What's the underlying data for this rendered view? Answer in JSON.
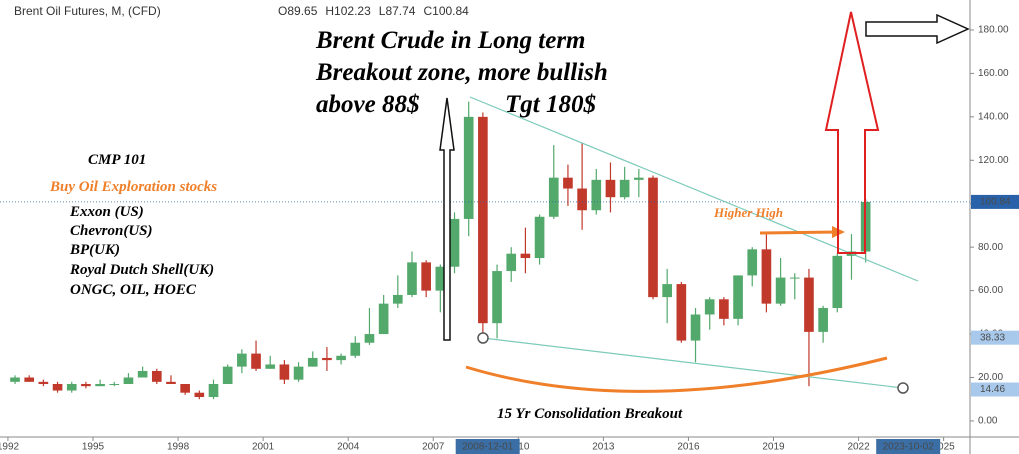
{
  "chart_data": {
    "type": "candlestick",
    "title": "Brent Oil Futures, M, (CFD)",
    "ohlc": [
      {
        "label": "O",
        "value": 89.65
      },
      {
        "label": "H",
        "value": 102.23
      },
      {
        "label": "L",
        "value": 87.74
      },
      {
        "label": "C",
        "value": 100.84
      }
    ],
    "up_color": "#53a86b",
    "down_color": "#c0392b",
    "xlim": [
      1991.72,
      2025.93
    ],
    "xticks": [
      1992,
      1995,
      1998,
      2001,
      2004,
      2007,
      2010,
      2013,
      2016,
      2019,
      2022,
      2025
    ],
    "ylim": [
      -7.4,
      193.8
    ],
    "yticks": [
      {
        "value": 0,
        "label": "0.00"
      },
      {
        "value": 20,
        "label": "20.00"
      },
      {
        "value": 40,
        "label": "40.00"
      },
      {
        "value": 60,
        "label": "60.00"
      },
      {
        "value": 80,
        "label": "80.00"
      },
      {
        "value": 100,
        "label": "100.00"
      },
      {
        "value": 120,
        "label": "120.00"
      },
      {
        "value": 140,
        "label": "140.00"
      },
      {
        "value": 160,
        "label": "160.00"
      },
      {
        "value": 180,
        "label": "180.00"
      }
    ],
    "price_labels": [
      {
        "value": 100.84,
        "color": "#2962a8"
      },
      {
        "value": 38.33,
        "color": "#a9c9ec"
      },
      {
        "value": 14.46,
        "color": "#a9c9ec"
      }
    ],
    "crosshair_labels": [
      {
        "value": 2008.92,
        "label": "2008-12-01"
      },
      {
        "value": 2023.75,
        "label": "2023-10-02"
      }
    ],
    "candles": [
      [
        1992.25,
        18,
        21,
        17,
        20
      ],
      [
        1992.75,
        20,
        21,
        18,
        18
      ],
      [
        1993.25,
        18,
        19,
        16,
        17
      ],
      [
        1993.75,
        17,
        18,
        13,
        14
      ],
      [
        1994.25,
        14,
        18,
        13,
        17
      ],
      [
        1994.75,
        17,
        18,
        15,
        16
      ],
      [
        1995.25,
        16,
        19,
        16,
        17
      ],
      [
        1995.75,
        17,
        18,
        16,
        17
      ],
      [
        1996.25,
        17,
        22,
        17,
        20
      ],
      [
        1996.75,
        20,
        25,
        20,
        23
      ],
      [
        1997.25,
        23,
        24,
        17,
        18
      ],
      [
        1997.75,
        18,
        21,
        17,
        17
      ],
      [
        1998.25,
        17,
        17,
        12,
        13
      ],
      [
        1998.75,
        13,
        14,
        10,
        11
      ],
      [
        1999.25,
        11,
        19,
        10,
        17
      ],
      [
        1999.75,
        17,
        26,
        17,
        25
      ],
      [
        2000.25,
        25,
        33,
        22,
        31
      ],
      [
        2000.75,
        31,
        37,
        23,
        24
      ],
      [
        2001.25,
        24,
        30,
        24,
        26
      ],
      [
        2001.75,
        26,
        28,
        17,
        19
      ],
      [
        2002.25,
        19,
        27,
        18,
        25
      ],
      [
        2002.75,
        25,
        32,
        25,
        29
      ],
      [
        2003.25,
        29,
        34,
        23,
        28
      ],
      [
        2003.75,
        28,
        31,
        26,
        30
      ],
      [
        2004.25,
        30,
        39,
        29,
        36
      ],
      [
        2004.75,
        36,
        52,
        35,
        40
      ],
      [
        2005.25,
        40,
        58,
        40,
        54
      ],
      [
        2005.75,
        54,
        67,
        52,
        58
      ],
      [
        2006.25,
        58,
        78,
        57,
        73
      ],
      [
        2006.75,
        73,
        74,
        57,
        60
      ],
      [
        2007.25,
        60,
        72,
        50,
        71
      ],
      [
        2007.75,
        71,
        96,
        68,
        93
      ],
      [
        2008.25,
        93,
        147,
        85,
        140
      ],
      [
        2008.75,
        140,
        142,
        37,
        45
      ],
      [
        2009.25,
        45,
        72,
        38,
        69
      ],
      [
        2009.75,
        69,
        80,
        64,
        77
      ],
      [
        2010.25,
        77,
        89,
        68,
        75
      ],
      [
        2010.75,
        75,
        95,
        72,
        94
      ],
      [
        2011.25,
        94,
        127,
        93,
        112
      ],
      [
        2011.75,
        112,
        118,
        99,
        107
      ],
      [
        2012.25,
        107,
        128,
        88,
        97
      ],
      [
        2012.75,
        97,
        116,
        95,
        111
      ],
      [
        2013.25,
        111,
        119,
        96,
        103
      ],
      [
        2013.75,
        103,
        117,
        102,
        111
      ],
      [
        2014.25,
        111,
        116,
        103,
        112
      ],
      [
        2014.75,
        112,
        113,
        56,
        57
      ],
      [
        2015.25,
        57,
        70,
        45,
        63
      ],
      [
        2015.75,
        63,
        64,
        36,
        37
      ],
      [
        2016.25,
        37,
        52,
        27,
        49
      ],
      [
        2016.75,
        49,
        57,
        42,
        56
      ],
      [
        2017.25,
        56,
        57,
        44,
        47
      ],
      [
        2017.75,
        47,
        67,
        44,
        67
      ],
      [
        2018.25,
        67,
        80,
        62,
        79
      ],
      [
        2018.75,
        79,
        87,
        50,
        54
      ],
      [
        2019.25,
        54,
        75,
        53,
        66
      ],
      [
        2019.75,
        66,
        68,
        56,
        66
      ],
      [
        2020.25,
        66,
        70,
        16,
        41
      ],
      [
        2020.75,
        41,
        53,
        36,
        52
      ],
      [
        2021.25,
        52,
        77,
        50,
        76
      ],
      [
        2021.75,
        76,
        86,
        65,
        78
      ],
      [
        2022.25,
        78,
        102.23,
        73,
        100.84
      ]
    ],
    "annotations": [
      "Brent Crude in Long term",
      "Breakout zone, more bullish",
      "above 88$",
      "Tgt 180$",
      "CMP 101",
      "Buy Oil Exploration stocks",
      "Exxon (US)",
      "Chevron(US)",
      "BP(UK)",
      "Royal Dutch Shell(UK)",
      "ONGC, OIL, HOEC",
      "Higher High",
      "15 Yr Consolidation Breakout"
    ]
  }
}
